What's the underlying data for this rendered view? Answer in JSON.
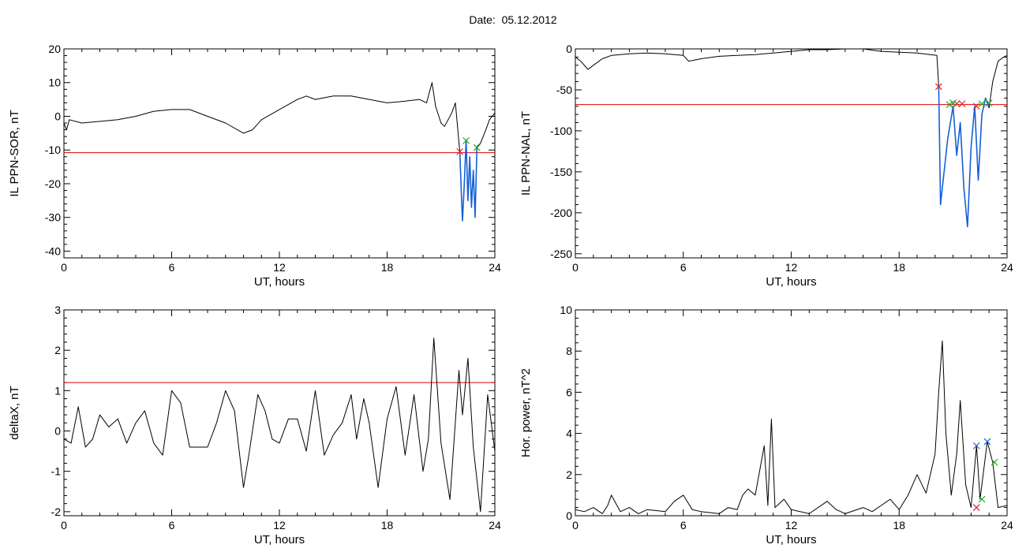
{
  "header": {
    "date_label": "Date:",
    "date_value": "05.12.2012"
  },
  "colors": {
    "axis": "#000000",
    "trace": "#000000",
    "threshold": "#e00000",
    "highlight": "#1560d8",
    "marker_red": "#e02020",
    "marker_green": "#22aa22",
    "marker_blue": "#1560d8"
  },
  "chart_data": [
    {
      "type": "line",
      "title": "",
      "xlabel": "UT, hours",
      "ylabel": "IL PPN-SOR, nT",
      "xlim": [
        0,
        24
      ],
      "ylim": [
        -42,
        20
      ],
      "xticks": [
        0,
        6,
        12,
        18,
        24
      ],
      "yticks": [
        -40,
        -30,
        -20,
        -10,
        0,
        10,
        20
      ],
      "grid": false,
      "threshold": -10.8,
      "series": [
        {
          "values": [
            [
              0,
              -2
            ],
            [
              0.15,
              -4
            ],
            [
              0.3,
              -1
            ],
            [
              1,
              -2
            ],
            [
              2,
              -1.5
            ],
            [
              3,
              -1
            ],
            [
              4,
              0
            ],
            [
              5,
              1.5
            ],
            [
              6,
              2
            ],
            [
              7,
              2
            ],
            [
              8,
              0
            ],
            [
              9,
              -2
            ],
            [
              10,
              -5
            ],
            [
              10.5,
              -4
            ],
            [
              11,
              -1
            ],
            [
              12,
              2
            ],
            [
              13,
              5
            ],
            [
              13.5,
              6
            ],
            [
              14,
              5
            ],
            [
              15,
              6
            ],
            [
              16,
              6
            ],
            [
              17,
              5
            ],
            [
              18,
              4
            ],
            [
              19,
              4.5
            ],
            [
              19.8,
              5
            ],
            [
              20.2,
              4
            ],
            [
              20.5,
              10
            ],
            [
              20.7,
              3
            ],
            [
              21,
              -2
            ],
            [
              21.2,
              -3
            ],
            [
              21.6,
              1
            ],
            [
              21.8,
              4
            ],
            [
              22.05,
              -10.5
            ]
          ]
        }
      ],
      "highlight": {
        "values": [
          [
            22.05,
            -10.5
          ],
          [
            22.15,
            -25
          ],
          [
            22.2,
            -31
          ],
          [
            22.3,
            -20
          ],
          [
            22.4,
            -7
          ],
          [
            22.5,
            -25
          ],
          [
            22.6,
            -12
          ],
          [
            22.7,
            -27
          ],
          [
            22.8,
            -16
          ],
          [
            22.9,
            -30
          ],
          [
            23.0,
            -9
          ]
        ]
      },
      "tail": [
        [
          23.0,
          -9
        ],
        [
          23.2,
          -8
        ],
        [
          23.5,
          -4
        ],
        [
          23.7,
          -1
        ],
        [
          24,
          1
        ]
      ],
      "markers": [
        {
          "x": 22.05,
          "y": -10.5,
          "color": "red"
        },
        {
          "x": 22.4,
          "y": -7.2,
          "color": "green"
        },
        {
          "x": 23.0,
          "y": -9.3,
          "color": "green"
        }
      ]
    },
    {
      "type": "line",
      "title": "",
      "xlabel": "UT, hours",
      "ylabel": "IL PPN-NAL, nT",
      "xlim": [
        0,
        24
      ],
      "ylim": [
        -255,
        0
      ],
      "xticks": [
        0,
        6,
        12,
        18,
        24
      ],
      "yticks": [
        -250,
        -200,
        -150,
        -100,
        -50,
        0
      ],
      "grid": false,
      "threshold": -68,
      "series": [
        {
          "values": [
            [
              0,
              -10
            ],
            [
              0.3,
              -15
            ],
            [
              0.7,
              -25
            ],
            [
              1,
              -20
            ],
            [
              1.5,
              -12
            ],
            [
              2,
              -8
            ],
            [
              3,
              -6
            ],
            [
              4,
              -5
            ],
            [
              5,
              -6
            ],
            [
              6,
              -8
            ],
            [
              6.3,
              -15
            ],
            [
              7,
              -12
            ],
            [
              8,
              -9
            ],
            [
              9,
              -8
            ],
            [
              10,
              -7
            ],
            [
              11,
              -5
            ],
            [
              12,
              -3
            ],
            [
              13,
              -1
            ],
            [
              14,
              -1
            ],
            [
              15,
              0
            ],
            [
              16,
              0
            ],
            [
              17,
              -3
            ],
            [
              18,
              -4
            ],
            [
              19,
              -5
            ],
            [
              20.1,
              -8
            ],
            [
              20.2,
              -46
            ]
          ]
        }
      ],
      "highlight": {
        "values": [
          [
            20.2,
            -46
          ],
          [
            20.3,
            -190
          ],
          [
            20.5,
            -150
          ],
          [
            20.7,
            -110
          ],
          [
            21.0,
            -70
          ],
          [
            21.2,
            -130
          ],
          [
            21.4,
            -90
          ],
          [
            21.6,
            -170
          ],
          [
            21.8,
            -217
          ],
          [
            22.0,
            -120
          ],
          [
            22.2,
            -70
          ],
          [
            22.4,
            -160
          ],
          [
            22.6,
            -80
          ],
          [
            22.8,
            -60
          ],
          [
            23.0,
            -72
          ]
        ]
      },
      "tail": [
        [
          23.0,
          -72
        ],
        [
          23.2,
          -40
        ],
        [
          23.5,
          -15
        ],
        [
          23.8,
          -10
        ],
        [
          24,
          -8
        ]
      ],
      "markers": [
        {
          "x": 20.2,
          "y": -46,
          "color": "red"
        },
        {
          "x": 21.2,
          "y": -67,
          "color": "red"
        },
        {
          "x": 21.5,
          "y": -67,
          "color": "red"
        },
        {
          "x": 22.3,
          "y": -70,
          "color": "red"
        },
        {
          "x": 20.8,
          "y": -68,
          "color": "green"
        },
        {
          "x": 21.0,
          "y": -66,
          "color": "green"
        },
        {
          "x": 22.6,
          "y": -67,
          "color": "green"
        },
        {
          "x": 23.0,
          "y": -66,
          "color": "green"
        }
      ]
    },
    {
      "type": "line",
      "title": "",
      "xlabel": "UT, hours",
      "ylabel": "deltaX, nT",
      "xlim": [
        0,
        24
      ],
      "ylim": [
        -2.1,
        3
      ],
      "xticks": [
        0,
        6,
        12,
        18,
        24
      ],
      "yticks": [
        -2,
        -1,
        0,
        1,
        2,
        3
      ],
      "grid": false,
      "threshold": 1.2,
      "series": [
        {
          "values": [
            [
              0,
              -0.2
            ],
            [
              0.4,
              -0.3
            ],
            [
              0.8,
              0.6
            ],
            [
              1.2,
              -0.4
            ],
            [
              1.6,
              -0.2
            ],
            [
              2,
              0.4
            ],
            [
              2.5,
              0.1
            ],
            [
              3,
              0.3
            ],
            [
              3.5,
              -0.3
            ],
            [
              4,
              0.2
            ],
            [
              4.5,
              0.5
            ],
            [
              5,
              -0.3
            ],
            [
              5.5,
              -0.6
            ],
            [
              6,
              1.0
            ],
            [
              6.5,
              0.7
            ],
            [
              7,
              -0.4
            ],
            [
              7.5,
              -0.4
            ],
            [
              8,
              -0.4
            ],
            [
              8.5,
              0.2
            ],
            [
              9,
              1.0
            ],
            [
              9.5,
              0.5
            ],
            [
              10,
              -1.4
            ],
            [
              10.3,
              -0.6
            ],
            [
              10.8,
              0.9
            ],
            [
              11.2,
              0.5
            ],
            [
              11.6,
              -0.2
            ],
            [
              12,
              -0.3
            ],
            [
              12.5,
              0.3
            ],
            [
              13,
              0.3
            ],
            [
              13.5,
              -0.5
            ],
            [
              14,
              1.0
            ],
            [
              14.5,
              -0.6
            ],
            [
              15,
              -0.1
            ],
            [
              15.5,
              0.2
            ],
            [
              16,
              0.9
            ],
            [
              16.3,
              -0.2
            ],
            [
              16.7,
              0.8
            ],
            [
              17,
              0.2
            ],
            [
              17.5,
              -1.4
            ],
            [
              18,
              0.3
            ],
            [
              18.5,
              1.1
            ],
            [
              19,
              -0.6
            ],
            [
              19.5,
              0.9
            ],
            [
              20,
              -1.0
            ],
            [
              20.3,
              -0.2
            ],
            [
              20.6,
              2.3
            ],
            [
              21,
              -0.3
            ],
            [
              21.5,
              -1.7
            ],
            [
              22,
              1.5
            ],
            [
              22.2,
              0.4
            ],
            [
              22.5,
              1.8
            ],
            [
              22.8,
              -0.4
            ],
            [
              23.2,
              -2.0
            ],
            [
              23.6,
              0.9
            ],
            [
              24,
              -0.5
            ]
          ]
        }
      ],
      "highlight": null,
      "tail": null,
      "markers": []
    },
    {
      "type": "line",
      "title": "",
      "xlabel": "UT, hours",
      "ylabel": "Hor. power, nT^2",
      "xlim": [
        0,
        24
      ],
      "ylim": [
        0,
        10
      ],
      "xticks": [
        0,
        6,
        12,
        18,
        24
      ],
      "yticks": [
        0,
        2,
        4,
        6,
        8,
        10
      ],
      "grid": false,
      "threshold": null,
      "series": [
        {
          "values": [
            [
              0,
              0.3
            ],
            [
              0.5,
              0.2
            ],
            [
              1,
              0.4
            ],
            [
              1.5,
              0.1
            ],
            [
              1.8,
              0.5
            ],
            [
              2,
              1.0
            ],
            [
              2.5,
              0.2
            ],
            [
              3,
              0.4
            ],
            [
              3.5,
              0.1
            ],
            [
              4,
              0.3
            ],
            [
              5,
              0.2
            ],
            [
              5.5,
              0.7
            ],
            [
              6,
              1.0
            ],
            [
              6.5,
              0.3
            ],
            [
              7,
              0.2
            ],
            [
              8,
              0.1
            ],
            [
              8.5,
              0.4
            ],
            [
              9,
              0.3
            ],
            [
              9.3,
              1.0
            ],
            [
              9.6,
              1.3
            ],
            [
              10,
              1.0
            ],
            [
              10.5,
              3.4
            ],
            [
              10.7,
              0.5
            ],
            [
              10.9,
              4.7
            ],
            [
              11.1,
              0.4
            ],
            [
              11.6,
              0.8
            ],
            [
              12,
              0.3
            ],
            [
              13,
              0.1
            ],
            [
              14,
              0.7
            ],
            [
              14.5,
              0.3
            ],
            [
              15,
              0.1
            ],
            [
              16,
              0.4
            ],
            [
              16.5,
              0.2
            ],
            [
              17,
              0.5
            ],
            [
              17.5,
              0.8
            ],
            [
              18,
              0.3
            ],
            [
              18.5,
              1.0
            ],
            [
              19,
              2.0
            ],
            [
              19.5,
              1.1
            ],
            [
              20,
              3.0
            ],
            [
              20.2,
              6.0
            ],
            [
              20.4,
              8.5
            ],
            [
              20.6,
              4.0
            ],
            [
              20.9,
              1.0
            ],
            [
              21.2,
              3.0
            ],
            [
              21.4,
              5.6
            ],
            [
              21.7,
              1.5
            ],
            [
              22.0,
              0.4
            ],
            [
              22.3,
              3.4
            ],
            [
              22.5,
              0.8
            ],
            [
              22.9,
              3.6
            ],
            [
              23.2,
              2.6
            ],
            [
              23.5,
              0.4
            ],
            [
              24,
              0.5
            ]
          ]
        }
      ],
      "highlight": null,
      "tail": null,
      "markers": [
        {
          "x": 22.3,
          "y": 0.4,
          "color": "red"
        },
        {
          "x": 22.3,
          "y": 3.4,
          "color": "blue"
        },
        {
          "x": 22.9,
          "y": 3.6,
          "color": "blue"
        },
        {
          "x": 22.6,
          "y": 0.8,
          "color": "green"
        },
        {
          "x": 23.3,
          "y": 2.6,
          "color": "green"
        }
      ]
    }
  ]
}
